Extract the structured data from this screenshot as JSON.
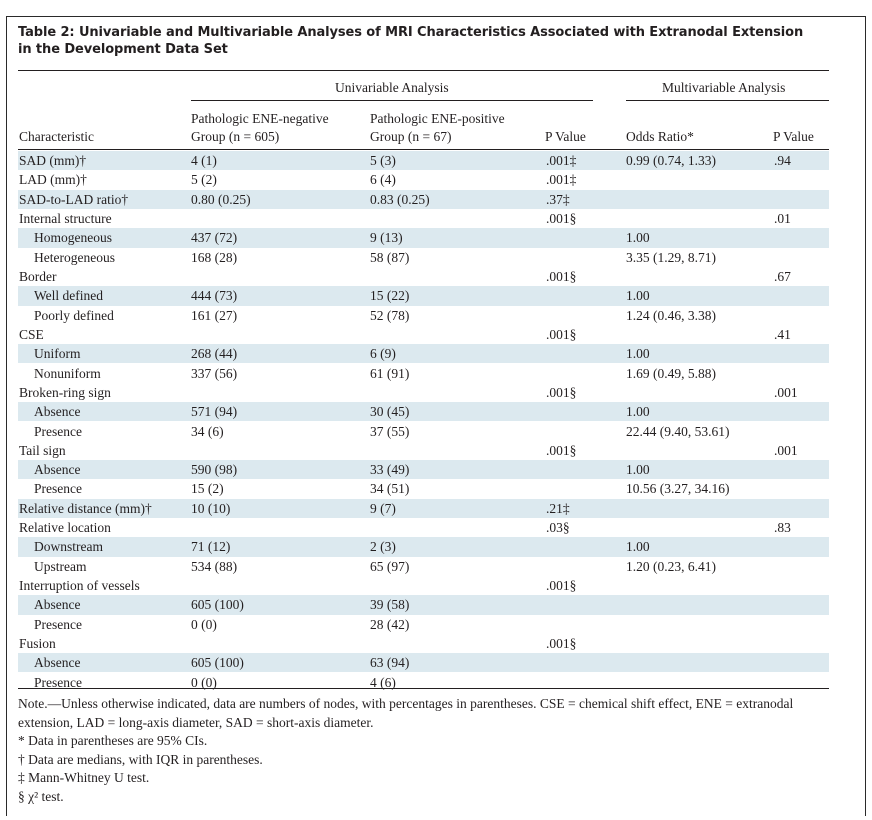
{
  "table_title": "Table 2: Univariable and Multivariable Analyses of MRI Characteristics Associated with Extranodal Extension in the Development Data Set",
  "header": {
    "univariable": "Univariable Analysis",
    "multivariable": "Multivariable Analysis",
    "characteristic": "Characteristic",
    "neg_group_line1": "Pathologic ENE-negative",
    "neg_group_line2": "Group (n = 605)",
    "pos_group_line1": "Pathologic ENE-positive",
    "pos_group_line2": "Group (n = 67)",
    "p_value": "P Value",
    "odds_ratio": "Odds Ratio*",
    "p_value_multi": "P Value"
  },
  "rows": [
    {
      "label": "SAD (mm)†",
      "neg": "4 (1)",
      "pos": "5 (3)",
      "p": ".001‡",
      "or": "0.99 (0.74, 1.33)",
      "p2": ".94"
    },
    {
      "label": "LAD (mm)†",
      "neg": "5 (2)",
      "pos": "6 (4)",
      "p": ".001‡",
      "or": "",
      "p2": ""
    },
    {
      "label": "SAD-to-LAD ratio†",
      "neg": "0.80 (0.25)",
      "pos": "0.83 (0.25)",
      "p": ".37‡",
      "or": "",
      "p2": ""
    },
    {
      "label": "Internal structure",
      "neg": "",
      "pos": "",
      "p": ".001§",
      "or": "",
      "p2": ".01"
    },
    {
      "label": "Homogeneous",
      "neg": "437 (72)",
      "pos": "9 (13)",
      "p": "",
      "or": "1.00",
      "p2": ""
    },
    {
      "label": "Heterogeneous",
      "neg": "168 (28)",
      "pos": "58 (87)",
      "p": "",
      "or": "3.35 (1.29, 8.71)",
      "p2": ""
    },
    {
      "label": "Border",
      "neg": "",
      "pos": "",
      "p": ".001§",
      "or": "",
      "p2": ".67"
    },
    {
      "label": "Well defined",
      "neg": "444 (73)",
      "pos": "15 (22)",
      "p": "",
      "or": "1.00",
      "p2": ""
    },
    {
      "label": "Poorly defined",
      "neg": "161 (27)",
      "pos": "52 (78)",
      "p": "",
      "or": "1.24 (0.46, 3.38)",
      "p2": ""
    },
    {
      "label": "CSE",
      "neg": "",
      "pos": "",
      "p": ".001§",
      "or": "",
      "p2": ".41"
    },
    {
      "label": "Uniform",
      "neg": "268 (44)",
      "pos": "6 (9)",
      "p": "",
      "or": "1.00",
      "p2": ""
    },
    {
      "label": "Nonuniform",
      "neg": "337 (56)",
      "pos": "61 (91)",
      "p": "",
      "or": "1.69 (0.49, 5.88)",
      "p2": ""
    },
    {
      "label": "Broken-ring sign",
      "neg": "",
      "pos": "",
      "p": ".001§",
      "or": "",
      "p2": ".001"
    },
    {
      "label": "Absence",
      "neg": "571 (94)",
      "pos": "30 (45)",
      "p": "",
      "or": "1.00",
      "p2": ""
    },
    {
      "label": "Presence",
      "neg": "34 (6)",
      "pos": "37 (55)",
      "p": "",
      "or": "22.44 (9.40, 53.61)",
      "p2": ""
    },
    {
      "label": "Tail sign",
      "neg": "",
      "pos": "",
      "p": ".001§",
      "or": "",
      "p2": ".001"
    },
    {
      "label": "Absence",
      "neg": "590 (98)",
      "pos": "33 (49)",
      "p": "",
      "or": "1.00",
      "p2": ""
    },
    {
      "label": "Presence",
      "neg": "15 (2)",
      "pos": "34 (51)",
      "p": "",
      "or": "10.56 (3.27, 34.16)",
      "p2": ""
    },
    {
      "label": "Relative distance (mm)†",
      "neg": "10 (10)",
      "pos": "9 (7)",
      "p": ".21‡",
      "or": "",
      "p2": ""
    },
    {
      "label": "Relative location",
      "neg": "",
      "pos": "",
      "p": ".03§",
      "or": "",
      "p2": ".83"
    },
    {
      "label": "Downstream",
      "neg": "71 (12)",
      "pos": "2 (3)",
      "p": "",
      "or": "1.00",
      "p2": ""
    },
    {
      "label": "Upstream",
      "neg": "534 (88)",
      "pos": "65 (97)",
      "p": "",
      "or": "1.20 (0.23, 6.41)",
      "p2": ""
    },
    {
      "label": "Interruption of vessels",
      "neg": "",
      "pos": "",
      "p": ".001§",
      "or": "",
      "p2": ""
    },
    {
      "label": "Absence",
      "neg": "605 (100)",
      "pos": "39 (58)",
      "p": "",
      "or": "",
      "p2": ""
    },
    {
      "label": "Presence",
      "neg": "0 (0)",
      "pos": "28 (42)",
      "p": "",
      "or": "",
      "p2": ""
    },
    {
      "label": "Fusion",
      "neg": "",
      "pos": "",
      "p": ".001§",
      "or": "",
      "p2": ""
    },
    {
      "label": "Absence",
      "neg": "605 (100)",
      "pos": "63 (94)",
      "p": "",
      "or": "",
      "p2": ""
    },
    {
      "label": "Presence",
      "neg": "0 (0)",
      "pos": "4 (6)",
      "p": "",
      "or": "",
      "p2": ""
    }
  ],
  "notes": [
    "Note.—Unless otherwise indicated, data are numbers of nodes, with percentages in parentheses. CSE = chemical shift effect, ENE = extranodal extension, LAD = long-axis diameter, SAD = short-axis diameter.",
    "* Data in parentheses are 95% CIs.",
    "† Data are medians, with IQR in parentheses.",
    "‡ Mann-Whitney U test.",
    "§ χ² test."
  ]
}
